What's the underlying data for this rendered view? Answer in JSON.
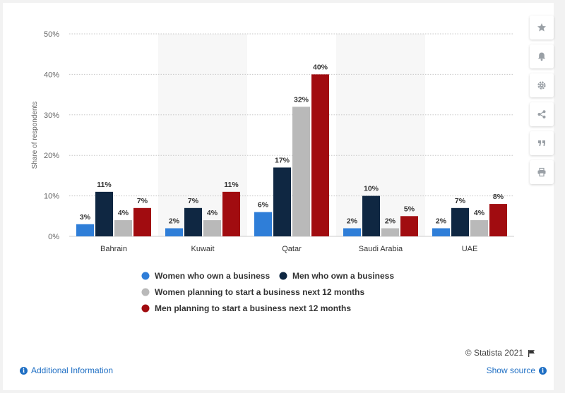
{
  "chart_data": {
    "type": "bar",
    "categories": [
      "Bahrain",
      "Kuwait",
      "Qatar",
      "Saudi Arabia",
      "UAE"
    ],
    "series": [
      {
        "name": "Women who own a business",
        "values": [
          3,
          2,
          6,
          2,
          2
        ],
        "color": "#2f7ed8"
      },
      {
        "name": "Men who own a business",
        "values": [
          11,
          7,
          17,
          10,
          7
        ],
        "color": "#0f2742"
      },
      {
        "name": "Women planning to start a business next 12 months",
        "values": [
          4,
          4,
          32,
          2,
          4
        ],
        "color": "#b9b9b9"
      },
      {
        "name": "Men planning to start a business next 12 months",
        "values": [
          7,
          11,
          40,
          5,
          8
        ],
        "color": "#a10c10"
      }
    ],
    "ylabel": "Share of respondents",
    "ylim": [
      0,
      50
    ],
    "yticks": [
      "0%",
      "10%",
      "20%",
      "30%",
      "40%",
      "50%"
    ],
    "ytick_values": [
      0,
      10,
      20,
      30,
      40,
      50
    ],
    "value_suffix": "%",
    "grid": true,
    "legend_position": "bottom"
  },
  "sidebar": {
    "buttons": [
      {
        "name": "star-icon"
      },
      {
        "name": "bell-icon"
      },
      {
        "name": "gear-icon"
      },
      {
        "name": "share-icon"
      },
      {
        "name": "quote-icon"
      },
      {
        "name": "print-icon"
      }
    ]
  },
  "footer": {
    "credit": "© Statista 2021",
    "additional_info": "Additional Information",
    "show_source": "Show source"
  }
}
